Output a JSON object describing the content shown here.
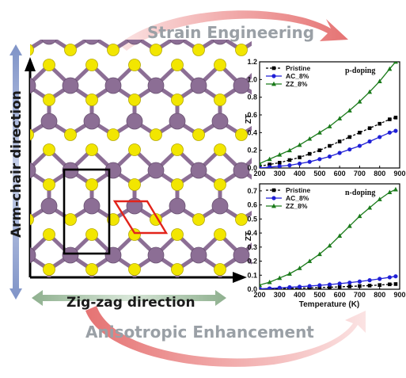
{
  "banners": {
    "top": "Strain Engineering",
    "bottom": "Anisotropic Enhancement"
  },
  "lattice": {
    "vertical_axis_label": "Arm-chair direction",
    "horizontal_axis_label": "Zig-zag direction",
    "colors": {
      "metal_atom": "#8c6e95",
      "chalcogen_atom": "#f2e600",
      "bond": "#8c6e95",
      "rectangular_cell": "#000000",
      "primitive_cell": "#e2231a",
      "vertical_arrow": "#7f93c7",
      "horizontal_arrow": "#8fb08f"
    }
  },
  "chart_data": [
    {
      "type": "line",
      "panel_label": "p-doping",
      "xlabel": "",
      "ylabel": "ZT",
      "xlim": [
        200,
        900
      ],
      "ylim": [
        0,
        1.2
      ],
      "xticks": [
        200,
        300,
        400,
        500,
        600,
        700,
        800,
        900
      ],
      "yticks": [
        0.0,
        0.2,
        0.4,
        0.6,
        0.8,
        1.0,
        1.2
      ],
      "x": [
        200,
        250,
        300,
        350,
        400,
        450,
        500,
        550,
        600,
        650,
        700,
        750,
        800,
        850,
        880
      ],
      "series": [
        {
          "name": "Pristine",
          "color": "#000000",
          "marker": "square",
          "dashed": true,
          "values": [
            0.02,
            0.04,
            0.06,
            0.09,
            0.12,
            0.16,
            0.2,
            0.25,
            0.3,
            0.35,
            0.4,
            0.45,
            0.5,
            0.55,
            0.57
          ]
        },
        {
          "name": "AC_8%",
          "color": "#1f1fd6",
          "marker": "circle",
          "dashed": false,
          "values": [
            0.0,
            0.01,
            0.02,
            0.03,
            0.05,
            0.07,
            0.1,
            0.13,
            0.17,
            0.21,
            0.25,
            0.3,
            0.35,
            0.4,
            0.42
          ]
        },
        {
          "name": "ZZ_8%",
          "color": "#1a7a1a",
          "marker": "triangle",
          "dashed": false,
          "values": [
            0.05,
            0.1,
            0.15,
            0.2,
            0.26,
            0.33,
            0.4,
            0.47,
            0.56,
            0.65,
            0.75,
            0.86,
            0.98,
            1.12,
            1.2
          ]
        }
      ]
    },
    {
      "type": "line",
      "panel_label": "n-doping",
      "xlabel": "Temperature (K)",
      "ylabel": "ZT",
      "xlim": [
        200,
        900
      ],
      "ylim": [
        0,
        0.75
      ],
      "xticks": [
        200,
        300,
        400,
        500,
        600,
        700,
        800,
        900
      ],
      "yticks": [
        0.0,
        0.1,
        0.2,
        0.3,
        0.4,
        0.5,
        0.6,
        0.7
      ],
      "x": [
        200,
        250,
        300,
        350,
        400,
        450,
        500,
        550,
        600,
        650,
        700,
        750,
        800,
        850,
        880
      ],
      "series": [
        {
          "name": "Pristine",
          "color": "#000000",
          "marker": "square",
          "dashed": true,
          "values": [
            0.0,
            0.002,
            0.004,
            0.006,
            0.008,
            0.01,
            0.012,
            0.014,
            0.017,
            0.02,
            0.023,
            0.026,
            0.03,
            0.035,
            0.037
          ]
        },
        {
          "name": "AC_8%",
          "color": "#1f1fd6",
          "marker": "circle",
          "dashed": false,
          "values": [
            0.003,
            0.006,
            0.01,
            0.014,
            0.018,
            0.023,
            0.028,
            0.033,
            0.04,
            0.047,
            0.055,
            0.064,
            0.074,
            0.085,
            0.092
          ]
        },
        {
          "name": "ZZ_8%",
          "color": "#1a7a1a",
          "marker": "triangle",
          "dashed": false,
          "values": [
            0.03,
            0.05,
            0.08,
            0.11,
            0.15,
            0.2,
            0.25,
            0.31,
            0.38,
            0.45,
            0.52,
            0.58,
            0.64,
            0.69,
            0.71
          ]
        }
      ]
    }
  ]
}
